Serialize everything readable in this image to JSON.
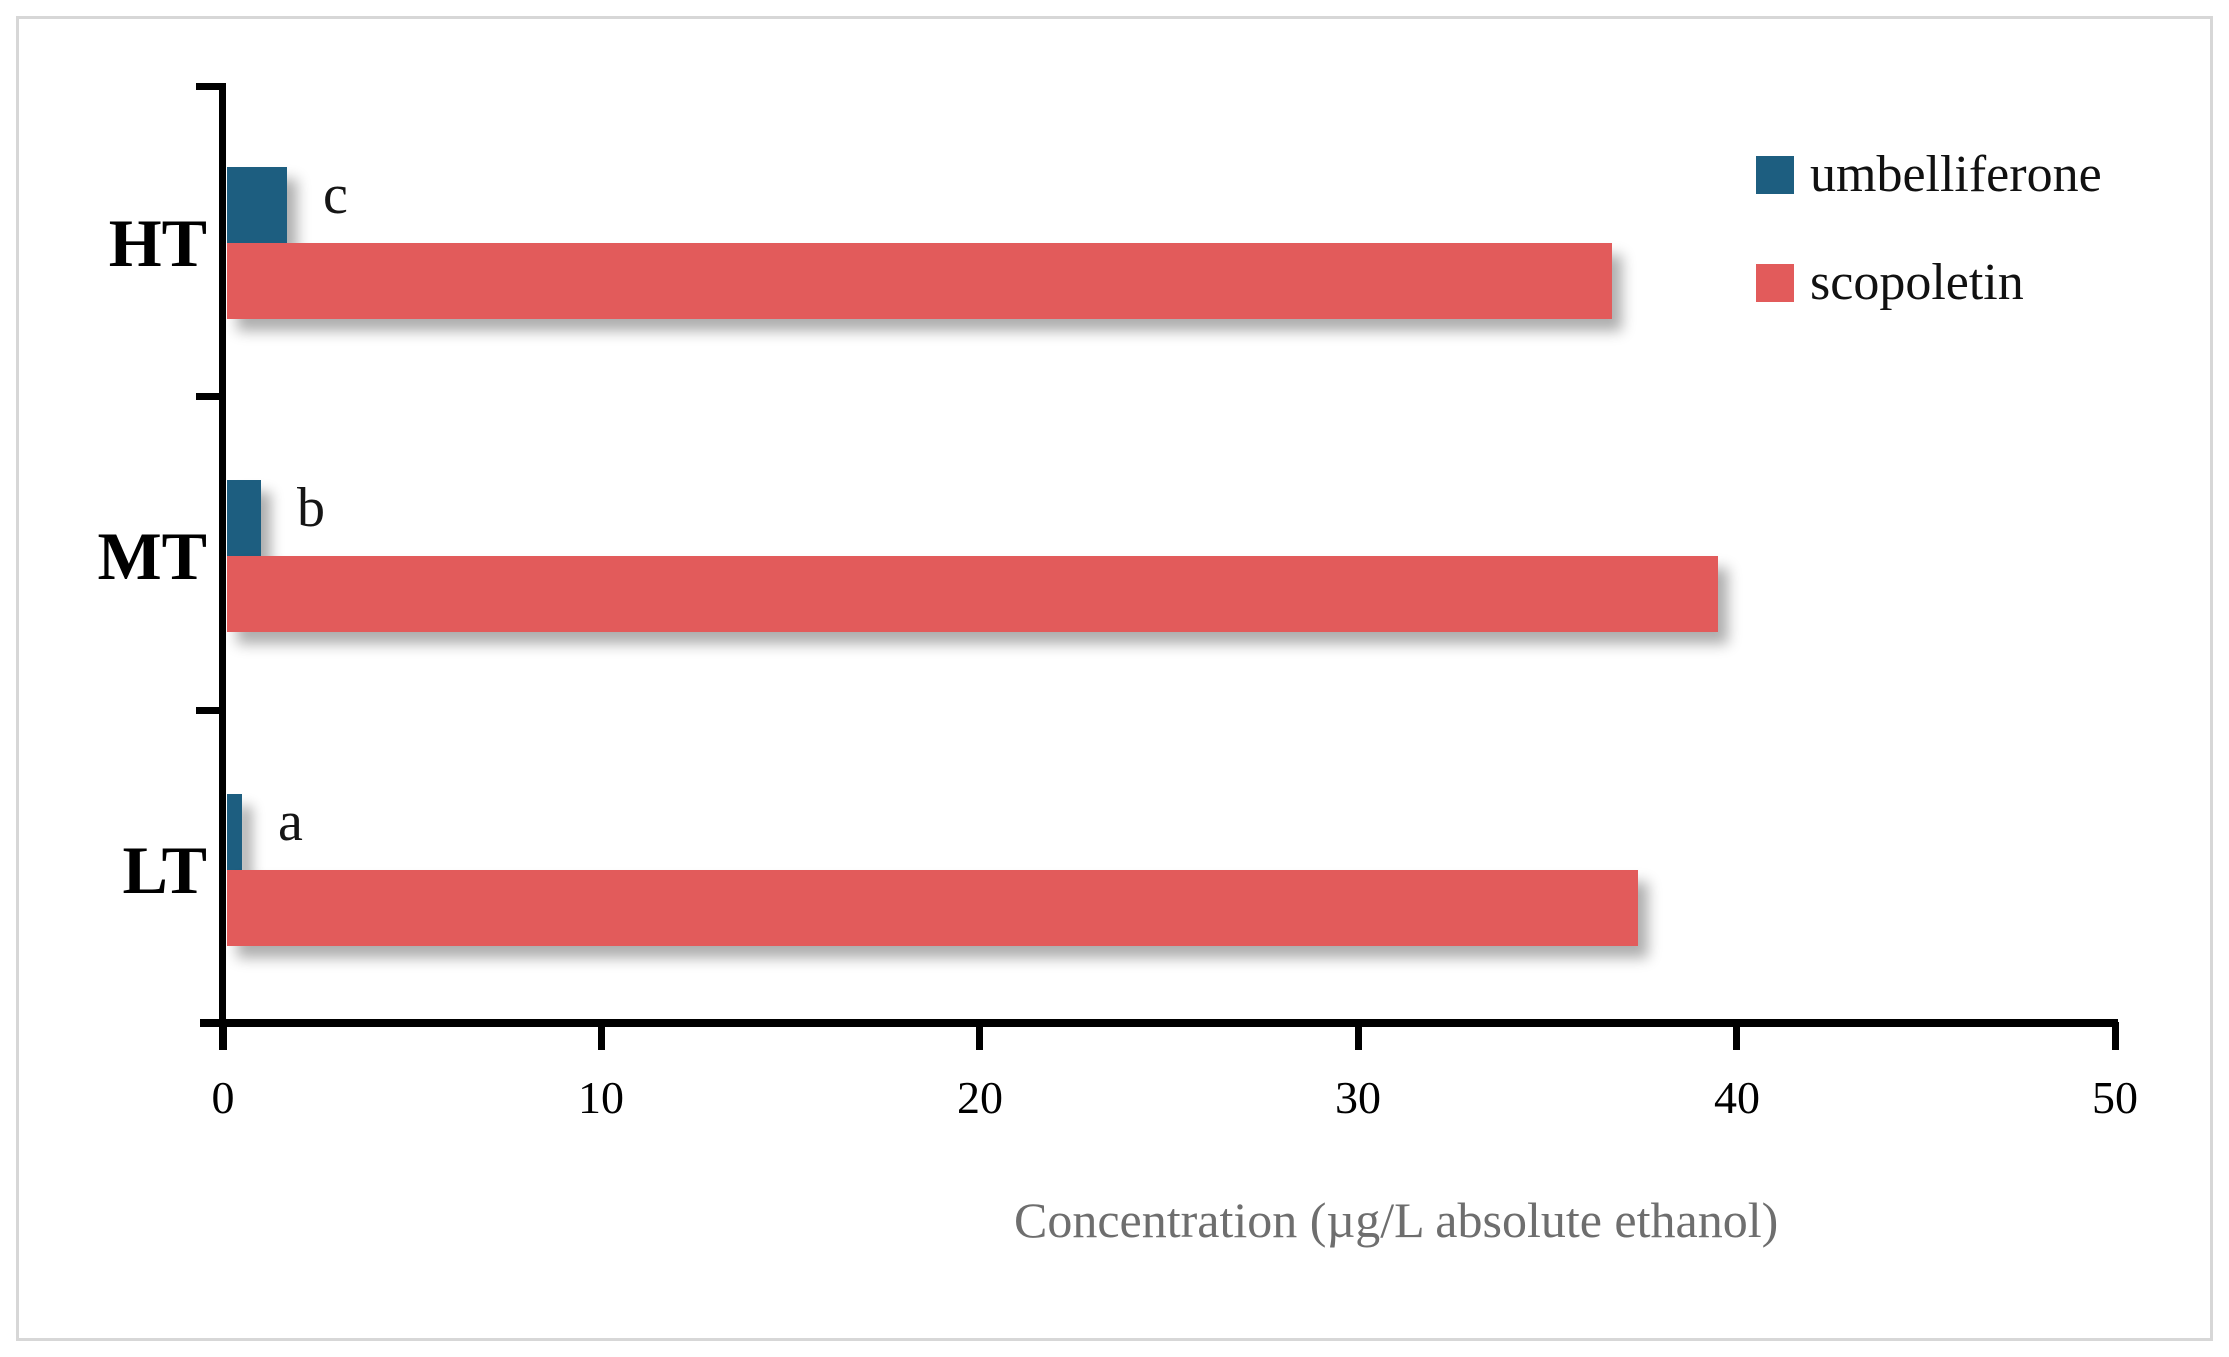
{
  "figure": {
    "kind": "grouped horizontal bar chart",
    "background": "#ffffff",
    "border_color": "#d7d7d7"
  },
  "chart_data": {
    "type": "bar",
    "orientation": "horizontal",
    "title": "",
    "xlabel": "Concentration (µg/L absolute ethanol)",
    "ylabel": "",
    "xlim": [
      0,
      50
    ],
    "xticks": [
      0,
      10,
      20,
      30,
      40,
      50
    ],
    "grid": false,
    "legend_position": "top-right",
    "categories": [
      "HT",
      "MT",
      "LT"
    ],
    "series": [
      {
        "name": "umbelliferone",
        "color": "#1d5e80",
        "values": [
          1.7,
          1.0,
          0.5
        ],
        "significance_letters": [
          "c",
          "b",
          "a"
        ]
      },
      {
        "name": "scopoletin",
        "color": "#e25b5b",
        "values": [
          36.7,
          39.5,
          37.4
        ]
      }
    ]
  }
}
